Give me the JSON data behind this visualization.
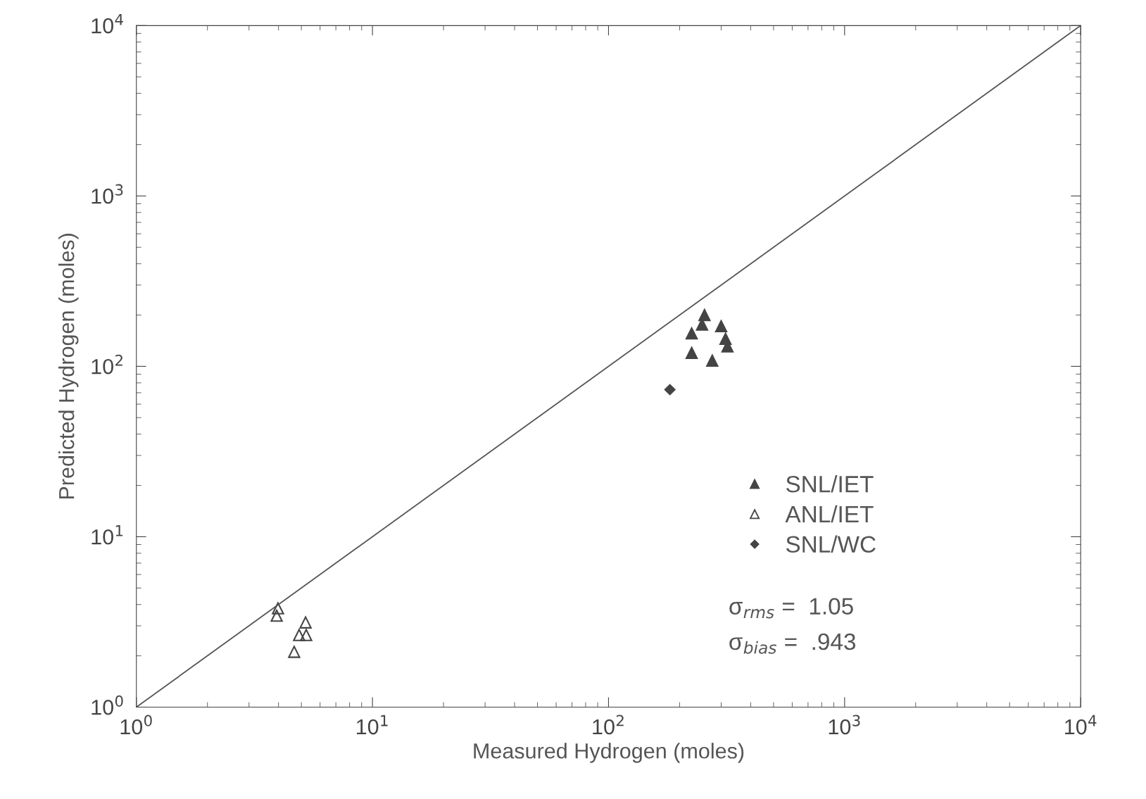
{
  "chart_data": {
    "type": "scatter",
    "xlabel": "Measured Hydrogen (moles)",
    "ylabel": "Predicted Hydrogen (moles)",
    "log": "xy",
    "xlim": [
      1,
      10000
    ],
    "ylim": [
      1,
      10000
    ],
    "xticks": [
      {
        "value": 1,
        "label": "10$^{0}$"
      },
      {
        "value": 10,
        "label": "10$^{1}$"
      },
      {
        "value": 100,
        "label": "10$^{2}$"
      },
      {
        "value": 1000,
        "label": "10$^{3}$"
      },
      {
        "value": 10000,
        "label": "10$^{4}$"
      }
    ],
    "yticks": [
      {
        "value": 1,
        "label": "10$^{0}$"
      },
      {
        "value": 10,
        "label": "10$^{1}$"
      },
      {
        "value": 100,
        "label": "10$^{2}$"
      },
      {
        "value": 1000,
        "label": "10$^{3}$"
      },
      {
        "value": 10000,
        "label": "10$^{4}$"
      }
    ],
    "grid": false,
    "legend": "right",
    "series": [
      {
        "name": "SNL/IET",
        "color": "#444444",
        "marker": "triangle",
        "x": [
          255,
          249,
          225,
          300,
          313,
          319,
          225,
          275
        ],
        "values": [
          200,
          176,
          156,
          172,
          145,
          131,
          120,
          108
        ]
      },
      {
        "name": "ANL/IET",
        "color": "#444444",
        "marker": "triangle-open",
        "x": [
          3.98,
          3.93,
          5.21,
          4.89,
          5.24,
          4.66
        ],
        "values": [
          3.8,
          3.44,
          3.14,
          2.65,
          2.65,
          2.11
        ]
      },
      {
        "name": "SNL/WC",
        "color": "#444444",
        "marker": "diamond",
        "x": [
          182
        ],
        "values": [
          73
        ]
      },
      {
        "type": "line",
        "color": "#555555",
        "marker": "none",
        "line_style": "solid",
        "x": [
          1,
          10000
        ],
        "values": [
          1,
          10000
        ]
      }
    ],
    "annotations": [
      "σ$_{rms}$ =  1.05",
      "σ$_{bias}$ =  .943"
    ]
  }
}
